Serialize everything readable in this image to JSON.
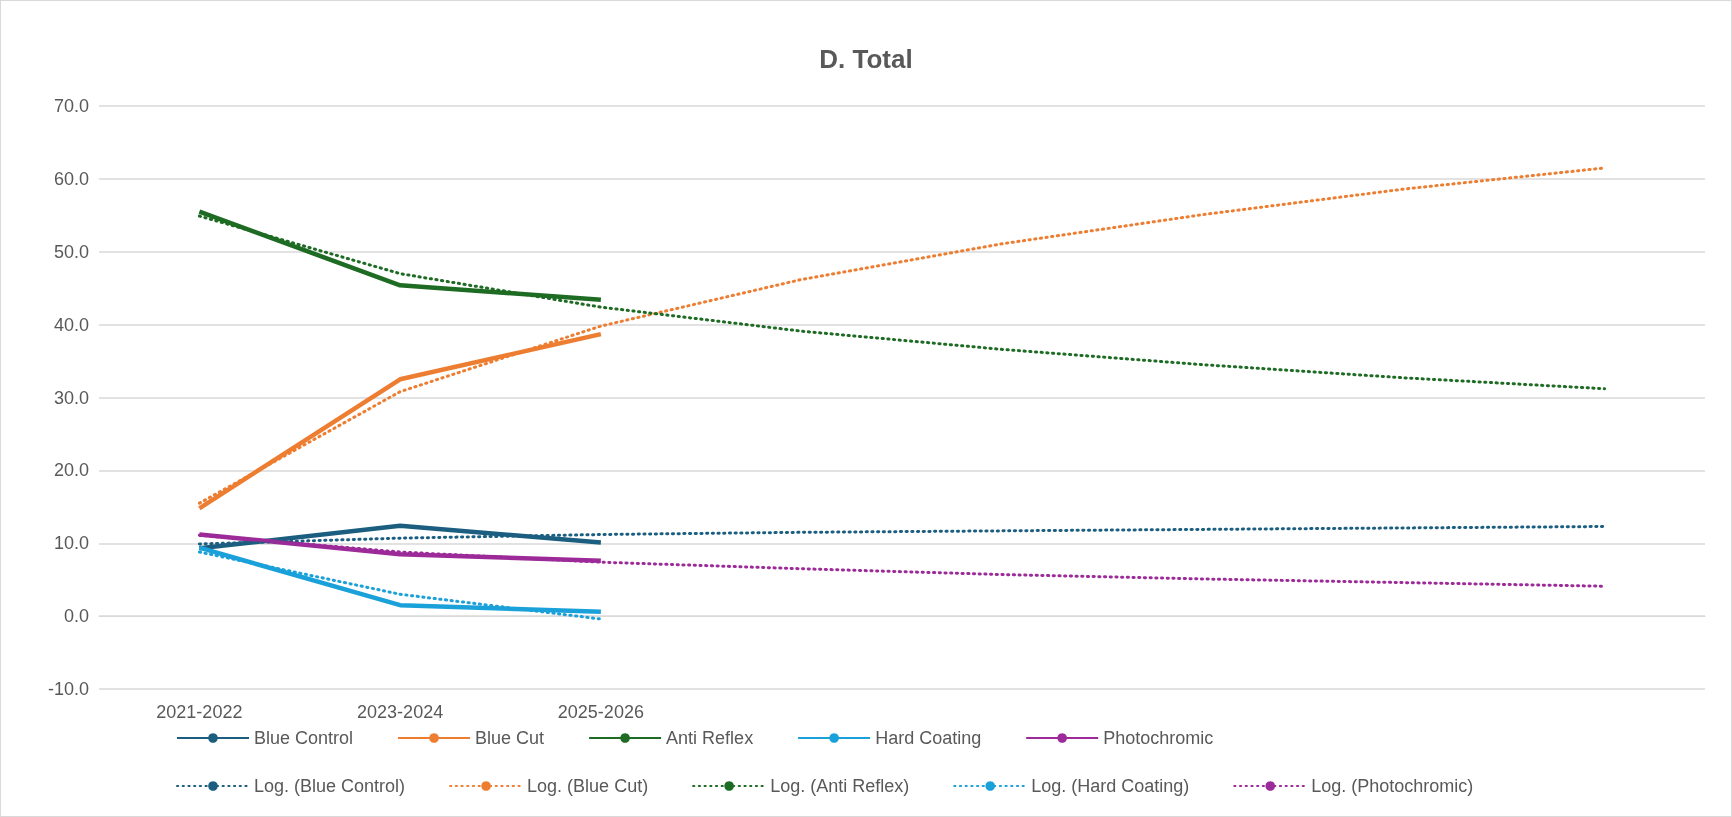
{
  "chart_data": {
    "type": "line",
    "title": "D. Total",
    "categories": [
      "2021-2022",
      "2023-2024",
      "2025-2026",
      null,
      null,
      null,
      null,
      null
    ],
    "series": [
      {
        "name": "Blue Control",
        "color": "#1b5e80",
        "line_style": "solid",
        "values": [
          9.3,
          12.4,
          10.1,
          null,
          null,
          null,
          null,
          null
        ]
      },
      {
        "name": "Blue Cut",
        "color": "#ed7d31",
        "line_style": "solid",
        "values": [
          14.8,
          32.5,
          38.7,
          null,
          null,
          null,
          null,
          null
        ]
      },
      {
        "name": "Anti Reflex",
        "color": "#1e6b24",
        "line_style": "solid",
        "values": [
          55.5,
          45.4,
          43.4,
          null,
          null,
          null,
          null,
          null
        ]
      },
      {
        "name": "Hard Coating",
        "color": "#1ba1d9",
        "line_style": "solid",
        "values": [
          9.4,
          1.5,
          0.6,
          null,
          null,
          null,
          null,
          null
        ]
      },
      {
        "name": "Photochromic",
        "color": "#9c2a98",
        "line_style": "solid",
        "values": [
          11.2,
          8.5,
          7.6,
          null,
          null,
          null,
          null,
          null
        ]
      },
      {
        "name": "Log. (Blue Control)",
        "color": "#1b5e80",
        "line_style": "dotted",
        "values": [
          9.9,
          10.7,
          11.2,
          11.5,
          11.7,
          11.9,
          12.1,
          12.3
        ]
      },
      {
        "name": "Log. (Blue Cut)",
        "color": "#ed7d31",
        "line_style": "dotted",
        "values": [
          15.5,
          30.8,
          39.8,
          46.2,
          51.1,
          55.1,
          58.6,
          61.5
        ]
      },
      {
        "name": "Log. (Anti Reflex)",
        "color": "#1e6b24",
        "line_style": "dotted",
        "values": [
          54.9,
          47.0,
          42.4,
          39.1,
          36.6,
          34.5,
          32.7,
          31.2
        ]
      },
      {
        "name": "Log. (Hard Coating)",
        "color": "#1ba1d9",
        "line_style": "dotted",
        "values": [
          8.8,
          3.0,
          -0.4,
          null,
          null,
          null,
          null,
          null
        ]
      },
      {
        "name": "Log. (Photochromic)",
        "color": "#9c2a98",
        "line_style": "dotted",
        "values": [
          11.1,
          8.8,
          7.4,
          6.5,
          5.7,
          5.1,
          4.6,
          4.1
        ]
      }
    ],
    "ylim": [
      -10,
      70
    ],
    "yticks": [
      {
        "value": -10,
        "label": "-10.0"
      },
      {
        "value": 0,
        "label": "0.0"
      },
      {
        "value": 10,
        "label": "10.0"
      },
      {
        "value": 20,
        "label": "20.0"
      },
      {
        "value": 30,
        "label": "30.0"
      },
      {
        "value": 40,
        "label": "40.0"
      },
      {
        "value": 50,
        "label": "50.0"
      },
      {
        "value": 60,
        "label": "60.0"
      },
      {
        "value": 70,
        "label": "70.0"
      }
    ],
    "grid": "y",
    "legend": "bottom",
    "marker": "none"
  }
}
